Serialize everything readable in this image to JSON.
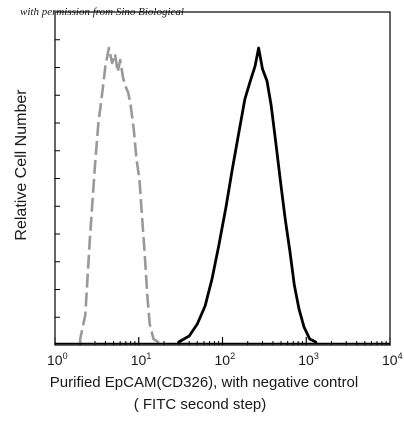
{
  "watermark": "with permission from Sino Biological",
  "chart_data": {
    "type": "area",
    "title": "",
    "xlabel_line1": "Purified  EpCAM(CD326),  with negative control",
    "xlabel_line2": "( FITC second step)",
    "ylabel": "Relative Cell Number",
    "x_scale": "log",
    "xlim": [
      1,
      10000
    ],
    "x_ticks": [
      {
        "base": "10",
        "exp": "0"
      },
      {
        "base": "10",
        "exp": "1"
      },
      {
        "base": "10",
        "exp": "2"
      },
      {
        "base": "10",
        "exp": "3"
      },
      {
        "base": "10",
        "exp": "4"
      }
    ],
    "ylim": [
      0,
      1
    ],
    "grid": false,
    "series": [
      {
        "color": "#999999",
        "line_style": "dashed",
        "x": [
          2.0,
          2.3,
          2.6,
          3.0,
          3.3,
          3.7,
          4.0,
          4.4,
          4.8,
          5.2,
          5.6,
          6.0,
          6.5,
          7.0,
          7.5,
          8.0,
          8.7,
          9.4,
          10.2,
          11.0,
          11.8,
          12.6,
          13.5,
          15.0,
          17.0
        ],
        "y": [
          0.02,
          0.1,
          0.35,
          0.6,
          0.74,
          0.85,
          0.93,
          0.99,
          0.94,
          0.97,
          0.91,
          0.95,
          0.89,
          0.86,
          0.84,
          0.8,
          0.72,
          0.62,
          0.55,
          0.42,
          0.3,
          0.17,
          0.07,
          0.02,
          0.01
        ]
      },
      {
        "color": "#000000",
        "line_style": "solid",
        "x": [
          30,
          40,
          50,
          62,
          75,
          90,
          110,
          130,
          155,
          185,
          215,
          245,
          270,
          300,
          340,
          380,
          430,
          490,
          560,
          640,
          720,
          820,
          940,
          1100,
          1300
        ],
        "y": [
          0.01,
          0.03,
          0.07,
          0.13,
          0.22,
          0.33,
          0.46,
          0.58,
          0.7,
          0.82,
          0.88,
          0.93,
          0.99,
          0.92,
          0.88,
          0.8,
          0.68,
          0.55,
          0.42,
          0.31,
          0.2,
          0.12,
          0.06,
          0.02,
          0.01
        ]
      }
    ]
  }
}
